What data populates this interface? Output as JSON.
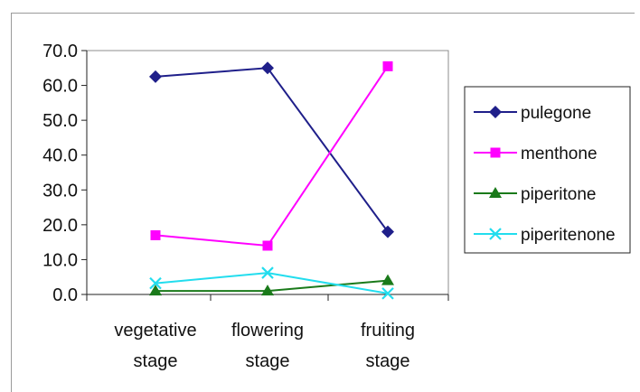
{
  "chart_data": {
    "type": "line",
    "categories": [
      [
        "vegetative",
        "stage"
      ],
      [
        "flowering",
        "stage"
      ],
      [
        "fruiting",
        "stage"
      ]
    ],
    "ylim": [
      0,
      70
    ],
    "yticks": [
      "0.0",
      "10.0",
      "20.0",
      "30.0",
      "40.0",
      "50.0",
      "60.0",
      "70.0"
    ],
    "grid": false,
    "legend_position": "right",
    "series": [
      {
        "name": "pulegone",
        "marker": "diamond",
        "color": "#1f1f8a",
        "values": [
          62.5,
          65.0,
          18.0
        ]
      },
      {
        "name": "menthone",
        "marker": "square",
        "color": "#ff00ff",
        "values": [
          17.0,
          14.0,
          65.5
        ]
      },
      {
        "name": "piperitone",
        "marker": "triangle",
        "color": "#1a7a1a",
        "values": [
          1.0,
          1.0,
          4.0
        ]
      },
      {
        "name": "piperitenone",
        "marker": "x",
        "color": "#22ddee",
        "values": [
          3.2,
          6.2,
          0.3
        ]
      }
    ]
  }
}
